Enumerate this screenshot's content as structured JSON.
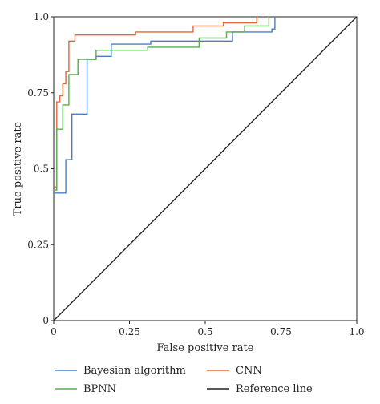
{
  "chart_data": {
    "type": "line",
    "xlabel": "False positive rate",
    "ylabel": "True positive rate",
    "xlim": [
      0,
      1.0
    ],
    "ylim": [
      0,
      1.0
    ],
    "x_ticks": [
      0,
      0.25,
      0.5,
      0.75,
      1.0
    ],
    "x_tick_labels": [
      "0",
      "0.25",
      "0.5",
      "0.75",
      "1.0"
    ],
    "y_ticks": [
      0,
      0.25,
      0.5,
      0.75,
      1.0
    ],
    "y_tick_labels": [
      "0",
      "0.25",
      "0.5",
      "0.75",
      "1.0"
    ],
    "grid": false,
    "legend_position": "bottom",
    "series": [
      {
        "name": "Bayesian algorithm",
        "color": "#4a7ec7",
        "x": [
          0,
          0,
          0.04,
          0.04,
          0.06,
          0.06,
          0.11,
          0.11,
          0.14,
          0.14,
          0.19,
          0.19,
          0.32,
          0.32,
          0.59,
          0.59,
          0.72,
          0.72,
          0.73,
          0.73
        ],
        "y": [
          0.42,
          0.42,
          0.42,
          0.53,
          0.53,
          0.68,
          0.68,
          0.86,
          0.86,
          0.87,
          0.87,
          0.91,
          0.91,
          0.92,
          0.92,
          0.95,
          0.95,
          0.96,
          0.96,
          1.0
        ]
      },
      {
        "name": "CNN",
        "color": "#e0683a",
        "x": [
          0,
          0,
          0.01,
          0.01,
          0.02,
          0.02,
          0.03,
          0.03,
          0.04,
          0.04,
          0.05,
          0.05,
          0.07,
          0.07,
          0.27,
          0.27,
          0.46,
          0.46,
          0.56,
          0.56,
          0.67,
          0.67
        ],
        "y": [
          0.44,
          0.44,
          0.44,
          0.72,
          0.72,
          0.74,
          0.74,
          0.78,
          0.78,
          0.82,
          0.82,
          0.92,
          0.92,
          0.94,
          0.94,
          0.95,
          0.95,
          0.97,
          0.97,
          0.98,
          0.98,
          1.0
        ]
      },
      {
        "name": "BPNN",
        "color": "#56ad4d",
        "x": [
          0,
          0,
          0.01,
          0.01,
          0.03,
          0.03,
          0.05,
          0.05,
          0.08,
          0.08,
          0.14,
          0.14,
          0.31,
          0.31,
          0.48,
          0.48,
          0.57,
          0.57,
          0.63,
          0.63,
          0.71,
          0.71
        ],
        "y": [
          0.43,
          0.43,
          0.43,
          0.63,
          0.63,
          0.71,
          0.71,
          0.81,
          0.81,
          0.86,
          0.86,
          0.89,
          0.89,
          0.9,
          0.9,
          0.93,
          0.93,
          0.95,
          0.95,
          0.97,
          0.97,
          1.0
        ]
      },
      {
        "name": "Reference line",
        "color": "#222222",
        "x": [
          0,
          1.0
        ],
        "y": [
          0,
          1.0
        ]
      }
    ]
  }
}
